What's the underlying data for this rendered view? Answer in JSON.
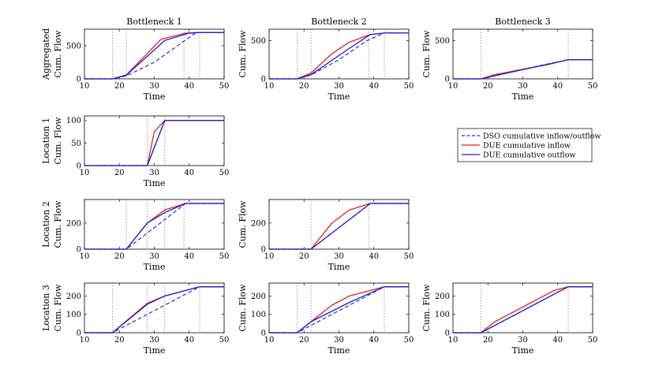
{
  "chart_data": {
    "type": "line",
    "x_axis": {
      "label": "Time",
      "ticks": [
        10,
        20,
        30,
        40,
        50
      ],
      "lim": [
        10,
        50
      ]
    },
    "y_axis_label": "Cum. Flow",
    "columns": [
      "Bottleneck 1",
      "Bottleneck 2",
      "Bottleneck 3"
    ],
    "rows": [
      "Aggregated",
      "Location 1",
      "Location 2",
      "Location 3"
    ],
    "legend": {
      "entries": [
        {
          "label": "DSO cumulative inflow/outflow",
          "color": "#2b2bd9",
          "style": "dashed"
        },
        {
          "label": "DUE cumulative inflow",
          "color": "#e02020",
          "style": "solid"
        },
        {
          "label": "DUE cumulative outflow",
          "color": "#1f1fc8",
          "style": "solid"
        }
      ]
    },
    "panels": [
      {
        "row": 0,
        "col": 0,
        "ylim": [
          0,
          750
        ],
        "yticks": [
          0,
          500
        ],
        "vlines": [
          18,
          22,
          38.5,
          43
        ],
        "series": {
          "dso": [
            [
              10,
              0
            ],
            [
              18,
              0
            ],
            [
              22,
              45
            ],
            [
              30,
              250
            ],
            [
              38,
              550
            ],
            [
              42,
              700
            ],
            [
              50,
              700
            ]
          ],
          "due_in": [
            [
              10,
              0
            ],
            [
              18,
              0
            ],
            [
              22,
              60
            ],
            [
              27,
              330
            ],
            [
              32,
              600
            ],
            [
              39,
              690
            ],
            [
              43,
              700
            ],
            [
              50,
              700
            ]
          ],
          "due_out": [
            [
              10,
              0
            ],
            [
              18,
              0
            ],
            [
              22,
              55
            ],
            [
              33,
              580
            ],
            [
              40,
              690
            ],
            [
              43,
              700
            ],
            [
              50,
              700
            ]
          ]
        }
      },
      {
        "row": 0,
        "col": 1,
        "ylim": [
          0,
          650
        ],
        "yticks": [
          0,
          500
        ],
        "vlines": [
          18,
          22,
          38.5,
          43
        ],
        "series": {
          "dso": [
            [
              10,
              0
            ],
            [
              18,
              0
            ],
            [
              22,
              50
            ],
            [
              30,
              250
            ],
            [
              38,
              500
            ],
            [
              43,
              600
            ],
            [
              50,
              600
            ]
          ],
          "due_in": [
            [
              10,
              0
            ],
            [
              18,
              0
            ],
            [
              22,
              75
            ],
            [
              28,
              330
            ],
            [
              33,
              480
            ],
            [
              39,
              580
            ],
            [
              43,
              600
            ],
            [
              50,
              600
            ]
          ],
          "due_out": [
            [
              10,
              0
            ],
            [
              18,
              0
            ],
            [
              22,
              55
            ],
            [
              33,
              400
            ],
            [
              39,
              580
            ],
            [
              43,
              600
            ],
            [
              50,
              600
            ]
          ]
        }
      },
      {
        "row": 0,
        "col": 2,
        "ylim": [
          0,
          650
        ],
        "yticks": [
          0,
          500
        ],
        "vlines": [
          18,
          43
        ],
        "series": {
          "dso": [
            [
              10,
              0
            ],
            [
              18,
              0
            ],
            [
              22,
              50
            ],
            [
              43,
              250
            ],
            [
              50,
              250
            ]
          ],
          "due_in": [
            [
              10,
              0
            ],
            [
              18,
              0
            ],
            [
              22,
              55
            ],
            [
              30,
              125
            ],
            [
              37,
              185
            ],
            [
              43,
              250
            ],
            [
              50,
              250
            ]
          ],
          "due_out": [
            [
              10,
              0
            ],
            [
              18,
              0
            ],
            [
              43,
              250
            ],
            [
              50,
              250
            ]
          ]
        }
      },
      {
        "row": 1,
        "col": 0,
        "ylim": [
          0,
          110
        ],
        "yticks": [
          0,
          50,
          100
        ],
        "vlines": [
          28,
          33
        ],
        "series": {
          "dso": [
            [
              10,
              0
            ],
            [
              28,
              0
            ],
            [
              33,
              100
            ],
            [
              50,
              100
            ]
          ],
          "due_in": [
            [
              10,
              0
            ],
            [
              28,
              0
            ],
            [
              30,
              75
            ],
            [
              33,
              100
            ],
            [
              50,
              100
            ]
          ],
          "due_out": [
            [
              10,
              0
            ],
            [
              28,
              0
            ],
            [
              33,
              100
            ],
            [
              50,
              100
            ]
          ]
        }
      },
      {
        "row": 2,
        "col": 0,
        "ylim": [
          0,
          380
        ],
        "yticks": [
          0,
          200
        ],
        "vlines": [
          22,
          28,
          33,
          38.5
        ],
        "series": {
          "dso": [
            [
              10,
              0
            ],
            [
              22,
              0
            ],
            [
              39,
              350
            ],
            [
              50,
              350
            ]
          ],
          "due_in": [
            [
              10,
              0
            ],
            [
              22,
              0
            ],
            [
              28,
              200
            ],
            [
              33,
              300
            ],
            [
              39,
              350
            ],
            [
              50,
              350
            ]
          ],
          "due_out": [
            [
              10,
              0
            ],
            [
              22,
              0
            ],
            [
              28,
              200
            ],
            [
              33,
              280
            ],
            [
              39,
              350
            ],
            [
              50,
              350
            ]
          ]
        }
      },
      {
        "row": 2,
        "col": 1,
        "ylim": [
          0,
          380
        ],
        "yticks": [
          0,
          200
        ],
        "vlines": [
          22,
          38.5
        ],
        "series": {
          "dso": [
            [
              10,
              0
            ],
            [
              22,
              0
            ],
            [
              39,
              350
            ],
            [
              50,
              350
            ]
          ],
          "due_in": [
            [
              10,
              0
            ],
            [
              22,
              0
            ],
            [
              28,
              200
            ],
            [
              33,
              300
            ],
            [
              39,
              350
            ],
            [
              50,
              350
            ]
          ],
          "due_out": [
            [
              10,
              0
            ],
            [
              22,
              0
            ],
            [
              39,
              350
            ],
            [
              50,
              350
            ]
          ]
        }
      },
      {
        "row": 3,
        "col": 0,
        "ylim": [
          0,
          270
        ],
        "yticks": [
          0,
          100,
          200
        ],
        "vlines": [
          18,
          28,
          33,
          43
        ],
        "series": {
          "dso": [
            [
              10,
              0
            ],
            [
              18,
              0
            ],
            [
              43,
              250
            ],
            [
              50,
              250
            ]
          ],
          "due_in": [
            [
              10,
              0
            ],
            [
              18,
              0
            ],
            [
              28,
              160
            ],
            [
              33,
              200
            ],
            [
              43,
              250
            ],
            [
              50,
              250
            ]
          ],
          "due_out": [
            [
              10,
              0
            ],
            [
              18,
              0
            ],
            [
              28,
              155
            ],
            [
              33,
              200
            ],
            [
              43,
              250
            ],
            [
              50,
              250
            ]
          ]
        }
      },
      {
        "row": 3,
        "col": 1,
        "ylim": [
          0,
          270
        ],
        "yticks": [
          0,
          100,
          200
        ],
        "vlines": [
          18,
          22,
          43
        ],
        "series": {
          "dso": [
            [
              10,
              0
            ],
            [
              18,
              0
            ],
            [
              43,
              250
            ],
            [
              50,
              250
            ]
          ],
          "due_in": [
            [
              10,
              0
            ],
            [
              18,
              0
            ],
            [
              28,
              150
            ],
            [
              33,
              200
            ],
            [
              39,
              230
            ],
            [
              43,
              250
            ],
            [
              50,
              250
            ]
          ],
          "due_out": [
            [
              10,
              0
            ],
            [
              18,
              0
            ],
            [
              22,
              60
            ],
            [
              33,
              165
            ],
            [
              43,
              250
            ],
            [
              50,
              250
            ]
          ]
        }
      },
      {
        "row": 3,
        "col": 2,
        "ylim": [
          0,
          270
        ],
        "yticks": [
          0,
          100,
          200
        ],
        "vlines": [
          18,
          43
        ],
        "series": {
          "dso": [
            [
              10,
              0
            ],
            [
              18,
              0
            ],
            [
              43,
              250
            ],
            [
              50,
              250
            ]
          ],
          "due_in": [
            [
              10,
              0
            ],
            [
              18,
              0
            ],
            [
              22,
              60
            ],
            [
              39,
              230
            ],
            [
              43,
              250
            ],
            [
              50,
              250
            ]
          ],
          "due_out": [
            [
              10,
              0
            ],
            [
              18,
              0
            ],
            [
              43,
              250
            ],
            [
              50,
              250
            ]
          ]
        }
      }
    ]
  }
}
